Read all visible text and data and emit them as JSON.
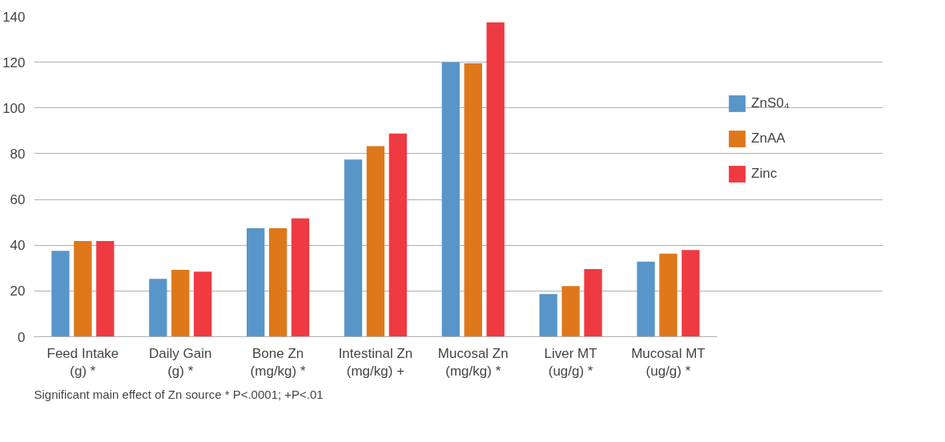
{
  "chart_data": {
    "type": "bar",
    "categories": [
      "Feed Intake\n(g) *",
      "Daily Gain\n(g) *",
      "Bone Zn\n(mg/kg) *",
      "Intestinal Zn\n(mg/kg) +",
      "Mucosal Zn\n(mg/kg) *",
      "Liver MT\n(ug/g) *",
      "Mucosal MT\n(ug/g) *"
    ],
    "series": [
      {
        "name": "ZnS0₄",
        "color": "#5896c9",
        "values": [
          37.5,
          25.3,
          47.4,
          77.4,
          120,
          18.6,
          32.8
        ]
      },
      {
        "name": "ZnAA",
        "color": "#de781b",
        "values": [
          41.8,
          29.2,
          47.4,
          83.3,
          119.5,
          22.1,
          36.3
        ]
      },
      {
        "name": "Zinc",
        "color": "#ef3a42",
        "values": [
          41.8,
          28.4,
          51.7,
          88.8,
          137.4,
          29.6,
          37.9
        ]
      }
    ],
    "ylim": [
      0,
      140
    ],
    "yticks": [
      0,
      20,
      40,
      60,
      80,
      100,
      120,
      140
    ],
    "grid": "y",
    "legend": "right",
    "annotations": [
      "Significant main effect of Zn source * P<.0001; +P<.01"
    ]
  }
}
